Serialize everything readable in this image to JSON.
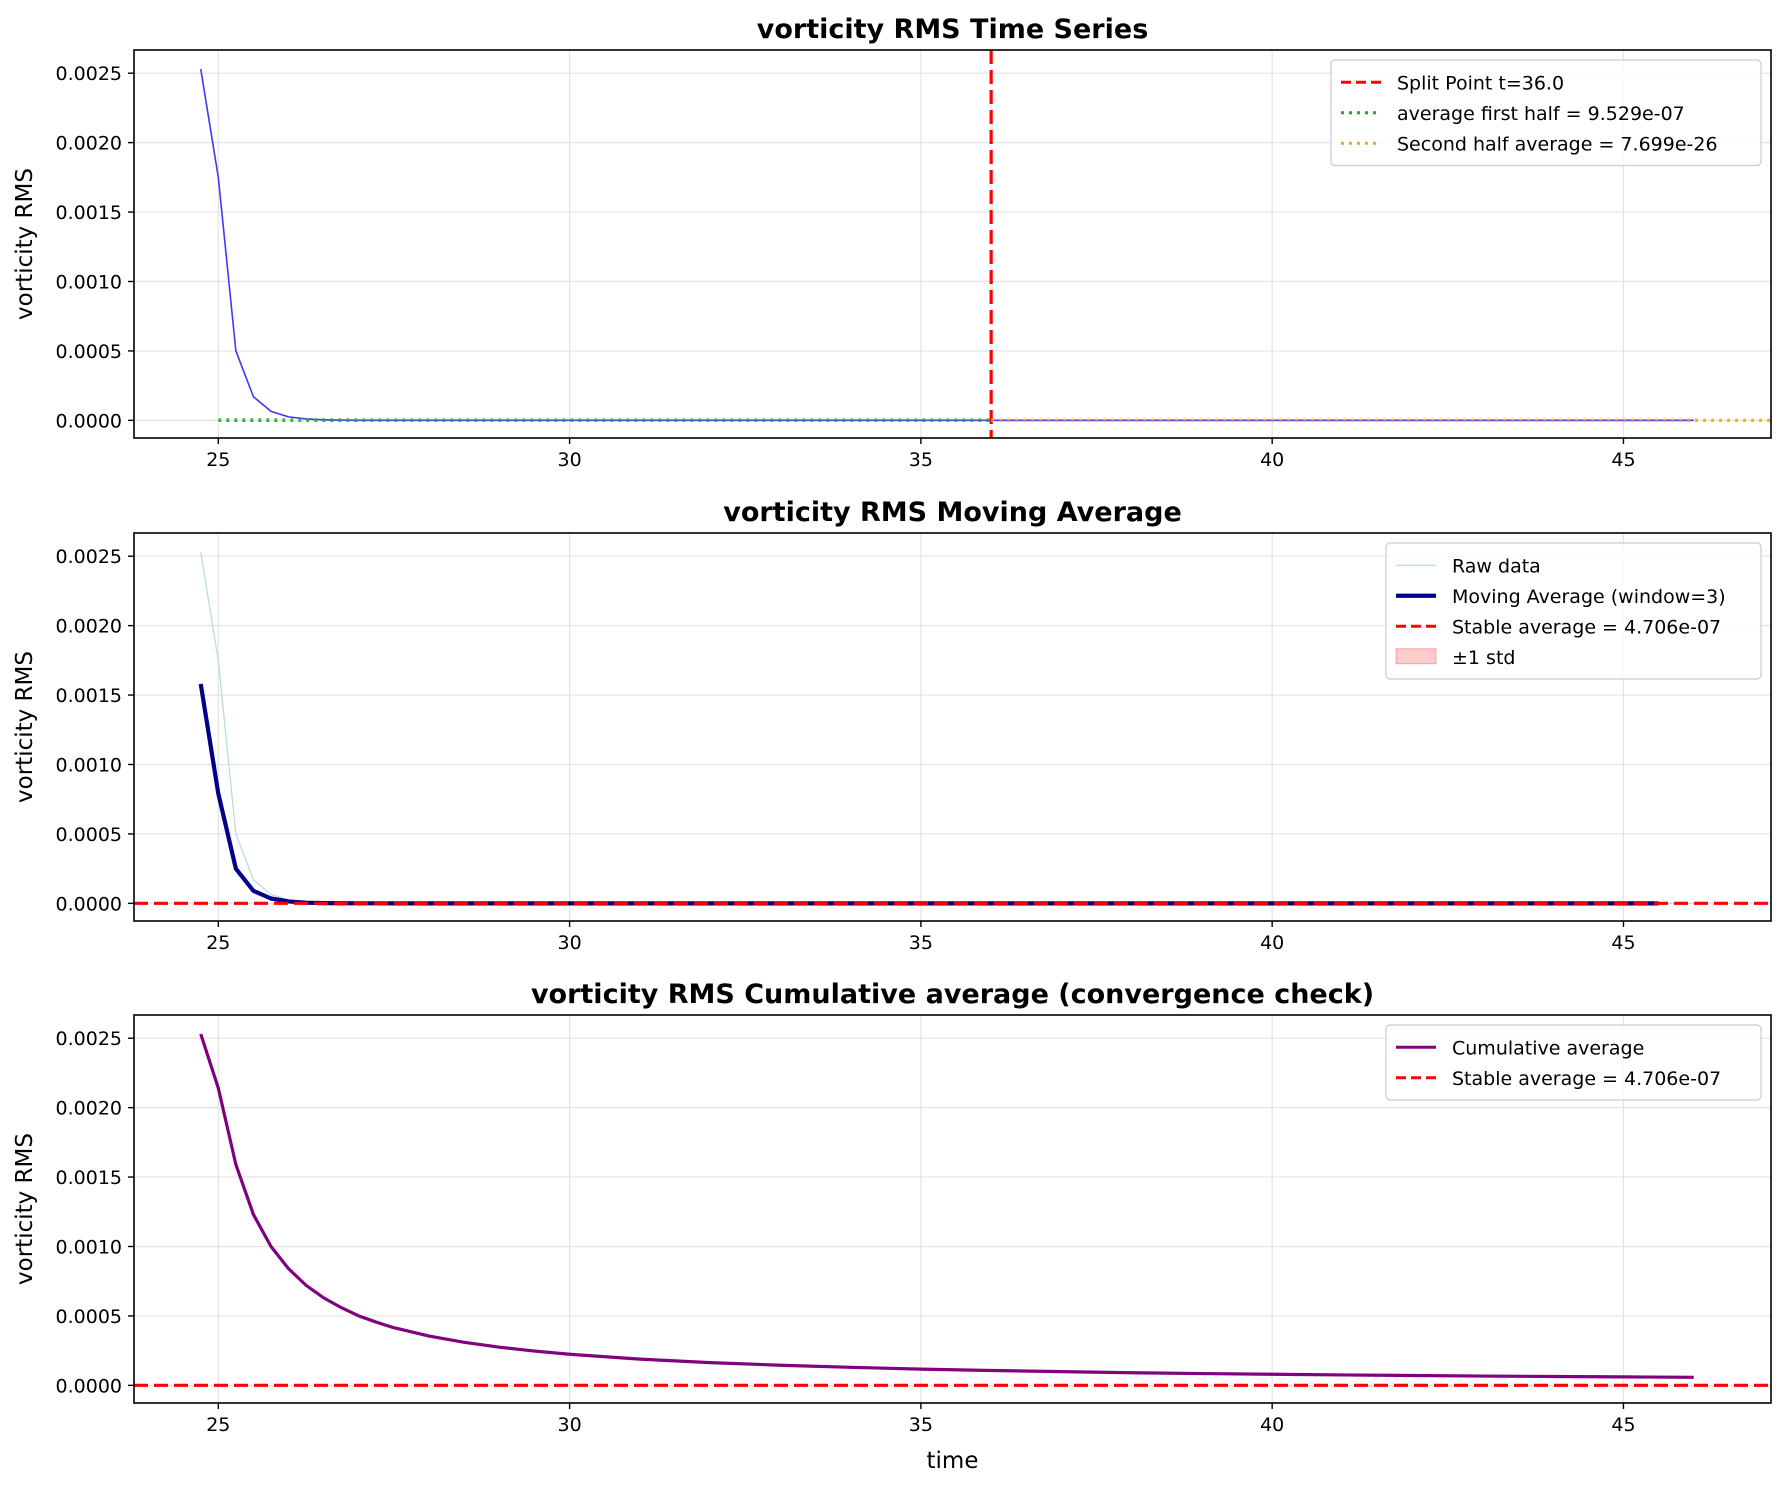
{
  "chart_data": [
    {
      "type": "line",
      "title": "vorticity RMS Time Series",
      "xlabel": "",
      "ylabel": "vorticity RMS",
      "xlim": [
        23.8,
        47.1
      ],
      "ylim": [
        -0.000127,
        0.002667
      ],
      "x_ticks": [
        25,
        30,
        35,
        40,
        45
      ],
      "y_ticks": [
        0.0,
        0.0005,
        0.001,
        0.0015,
        0.002,
        0.0025
      ],
      "y_tick_labels": [
        "0.0000",
        "0.0005",
        "0.0010",
        "0.0015",
        "0.0020",
        "0.0025"
      ],
      "grid": true,
      "legend_position": "top-right",
      "series": [
        {
          "kind": "line",
          "color": "#3b3bf5",
          "x": [
            24.75,
            25.0,
            25.25,
            25.5,
            25.75,
            26.0,
            26.25,
            26.5,
            26.75,
            27.0,
            27.5,
            28.0,
            30.0,
            35.0,
            40.0,
            46.0
          ],
          "y": [
            0.00253,
            0.00175,
            0.0005,
            0.00017,
            6.5e-05,
            2.5e-05,
            1e-05,
            4e-06,
            1.5e-06,
            6e-07,
            1e-07,
            0.0,
            0.0,
            0.0,
            0.0,
            0.0
          ]
        },
        {
          "kind": "vline",
          "name": "Split Point t=36.0",
          "x": 36.0,
          "color": "#ff0000",
          "dash": "dashed"
        },
        {
          "kind": "hsegment",
          "name": "average first half = 9.529e-07",
          "x": [
            25.0,
            36.0
          ],
          "y": 9.529e-07,
          "color": "#2ca02c",
          "dash": "dotted"
        },
        {
          "kind": "hsegment",
          "name": "Second half average = 7.699e-26",
          "x": [
            36.0,
            47.1
          ],
          "y": 7.699e-26,
          "color": "#ffa500",
          "dash": "dotted"
        }
      ],
      "legend": [
        {
          "label": "Split Point t=36.0",
          "kind": "line",
          "color": "#ff0000",
          "dash": "dashed"
        },
        {
          "label": "average first half = 9.529e-07",
          "kind": "line",
          "color": "#2ca02c",
          "dash": "dotted"
        },
        {
          "label": "Second half average = 7.699e-26",
          "kind": "line",
          "color": "#ffa500",
          "dash": "dotted"
        }
      ]
    },
    {
      "type": "line",
      "title": "vorticity RMS Moving Average",
      "xlabel": "",
      "ylabel": "vorticity RMS",
      "xlim": [
        23.8,
        47.1
      ],
      "ylim": [
        -0.000127,
        0.002667
      ],
      "x_ticks": [
        25,
        30,
        35,
        40,
        45
      ],
      "y_ticks": [
        0.0,
        0.0005,
        0.001,
        0.0015,
        0.002,
        0.0025
      ],
      "y_tick_labels": [
        "0.0000",
        "0.0005",
        "0.0010",
        "0.0015",
        "0.0020",
        "0.0025"
      ],
      "grid": true,
      "legend_position": "top-right",
      "series": [
        {
          "kind": "line",
          "name": "Raw data",
          "color": "#b8e0d0",
          "x": [
            24.75,
            25.0,
            25.25,
            25.5,
            25.75,
            26.0,
            26.25,
            26.5,
            26.75,
            27.0,
            27.5,
            28.0,
            30.0,
            35.0,
            40.0,
            46.0
          ],
          "y": [
            0.00253,
            0.00175,
            0.0005,
            0.00017,
            6.5e-05,
            2.5e-05,
            1e-05,
            4e-06,
            1.5e-06,
            6e-07,
            1e-07,
            0.0,
            0.0,
            0.0,
            0.0,
            0.0
          ]
        },
        {
          "kind": "line",
          "name": "Moving Average  (window=3)",
          "color": "#00008b",
          "x": [
            24.75,
            25.0,
            25.25,
            25.5,
            25.75,
            26.0,
            26.25,
            26.5,
            26.75,
            27.0,
            27.5,
            28.0,
            30.0,
            35.0,
            40.0,
            45.5
          ],
          "y": [
            0.00158,
            0.00079,
            0.00025,
            9e-05,
            3.5e-05,
            1.4e-05,
            5e-06,
            2e-06,
            1e-06,
            4e-07,
            1e-07,
            0.0,
            0.0,
            0.0,
            0.0,
            0.0
          ]
        },
        {
          "kind": "hline",
          "name": "Stable average = 4.706e-07",
          "y": 4.706e-07,
          "color": "#ff0000",
          "dash": "dashed"
        }
      ],
      "legend": [
        {
          "label": "Raw data",
          "kind": "line",
          "color": "#b8e0d0",
          "dash": "solid"
        },
        {
          "label": "Moving Average  (window=3)",
          "kind": "line",
          "color": "#00008b",
          "dash": "solid",
          "thick": true
        },
        {
          "label": "Stable average = 4.706e-07",
          "kind": "line",
          "color": "#ff0000",
          "dash": "dashed"
        },
        {
          "label": "±1 std",
          "kind": "patch",
          "color": "#ff0000"
        }
      ]
    },
    {
      "type": "line",
      "title": "vorticity RMS Cumulative average (convergence check)",
      "xlabel": "time",
      "ylabel": "vorticity RMS",
      "xlim": [
        23.8,
        47.1
      ],
      "ylim": [
        -0.000127,
        0.002667
      ],
      "x_ticks": [
        25,
        30,
        35,
        40,
        45
      ],
      "y_ticks": [
        0.0,
        0.0005,
        0.001,
        0.0015,
        0.002,
        0.0025
      ],
      "y_tick_labels": [
        "0.0000",
        "0.0005",
        "0.0010",
        "0.0015",
        "0.0020",
        "0.0025"
      ],
      "grid": true,
      "legend_position": "top-right",
      "series": [
        {
          "kind": "line",
          "name": "Cumulative average",
          "color": "#800080",
          "x": [
            24.75,
            25.0,
            25.25,
            25.5,
            25.75,
            26.0,
            26.25,
            26.5,
            26.75,
            27.0,
            27.25,
            27.5,
            28.0,
            28.5,
            29.0,
            29.5,
            30.0,
            31.0,
            32.0,
            33.0,
            34.0,
            35.0,
            36.0,
            37.0,
            38.0,
            39.0,
            40.0,
            41.0,
            42.0,
            43.0,
            44.0,
            45.0,
            46.0
          ],
          "y": [
            0.00253,
            0.00214,
            0.00159,
            0.00123,
            0.001,
            0.00084,
            0.00072,
            0.00063,
            0.00056,
            0.0005,
            0.000455,
            0.000415,
            0.000355,
            0.00031,
            0.000275,
            0.000247,
            0.000224,
            0.000189,
            0.000164,
            0.000145,
            0.00013,
            0.000117,
            0.000107,
            9.9e-05,
            9.1e-05,
            8.5e-05,
            8e-05,
            7.5e-05,
            7.1e-05,
            6.7e-05,
            6.4e-05,
            6.1e-05,
            5.8e-05
          ]
        },
        {
          "kind": "hline",
          "name": "Stable average = 4.706e-07",
          "y": 4.706e-07,
          "color": "#ff0000",
          "dash": "dashed"
        }
      ],
      "legend": [
        {
          "label": "Cumulative average",
          "kind": "line",
          "color": "#800080",
          "dash": "solid"
        },
        {
          "label": "Stable average = 4.706e-07",
          "kind": "line",
          "color": "#ff0000",
          "dash": "dashed"
        }
      ]
    }
  ]
}
